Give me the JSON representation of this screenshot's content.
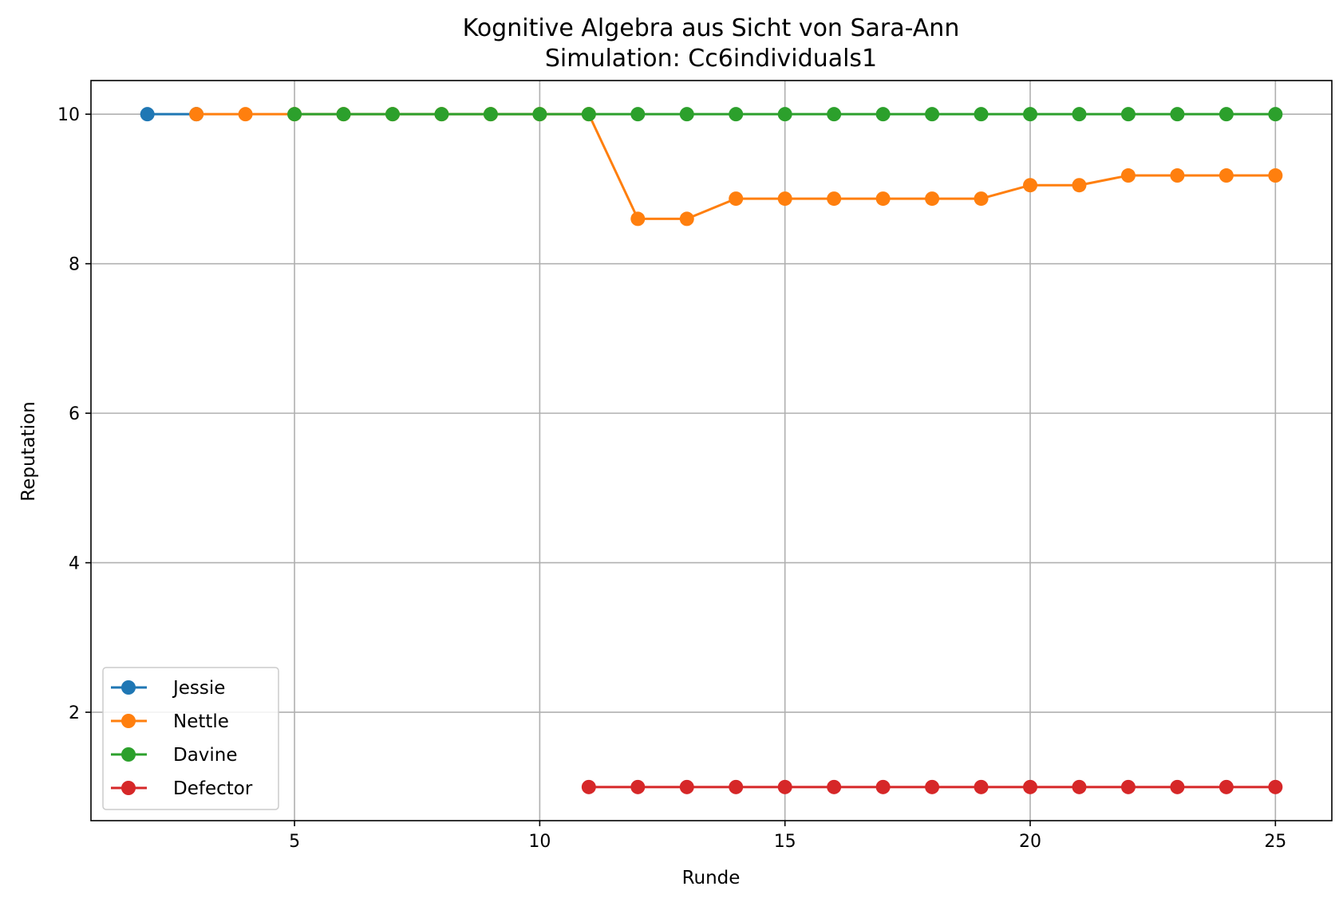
{
  "chart_data": {
    "type": "line",
    "title": "Kognitive Algebra aus Sicht von Sara-Ann",
    "subtitle": "Simulation: Cc6individuals1",
    "xlabel": "Runde",
    "ylabel": "Reputation",
    "xlim": [
      0.85,
      26.15
    ],
    "ylim": [
      0.55,
      10.45
    ],
    "xticks": [
      5,
      10,
      15,
      20,
      25
    ],
    "yticks": [
      2,
      4,
      6,
      8,
      10
    ],
    "grid": true,
    "legend_position": "lower-left",
    "series": [
      {
        "name": "Jessie",
        "color": "#1f77b4",
        "x": [
          2,
          3
        ],
        "y": [
          10,
          10
        ]
      },
      {
        "name": "Nettle",
        "color": "#ff7f0e",
        "x": [
          3,
          4,
          5,
          6,
          7,
          8,
          9,
          10,
          11,
          12,
          13,
          14,
          15,
          16,
          17,
          18,
          19,
          20,
          21,
          22,
          23,
          24,
          25
        ],
        "y": [
          10,
          10,
          10,
          10,
          10,
          10,
          10,
          10,
          10,
          8.6,
          8.6,
          8.87,
          8.87,
          8.87,
          8.87,
          8.87,
          8.87,
          9.05,
          9.05,
          9.18,
          9.18,
          9.18,
          9.18
        ]
      },
      {
        "name": "Davine",
        "color": "#2ca02c",
        "x": [
          5,
          6,
          7,
          8,
          9,
          10,
          11,
          12,
          13,
          14,
          15,
          16,
          17,
          18,
          19,
          20,
          21,
          22,
          23,
          24,
          25
        ],
        "y": [
          10,
          10,
          10,
          10,
          10,
          10,
          10,
          10,
          10,
          10,
          10,
          10,
          10,
          10,
          10,
          10,
          10,
          10,
          10,
          10,
          10
        ]
      },
      {
        "name": "Defector",
        "color": "#d62728",
        "x": [
          11,
          12,
          13,
          14,
          15,
          16,
          17,
          18,
          19,
          20,
          21,
          22,
          23,
          24,
          25
        ],
        "y": [
          1,
          1,
          1,
          1,
          1,
          1,
          1,
          1,
          1,
          1,
          1,
          1,
          1,
          1,
          1
        ]
      }
    ]
  }
}
